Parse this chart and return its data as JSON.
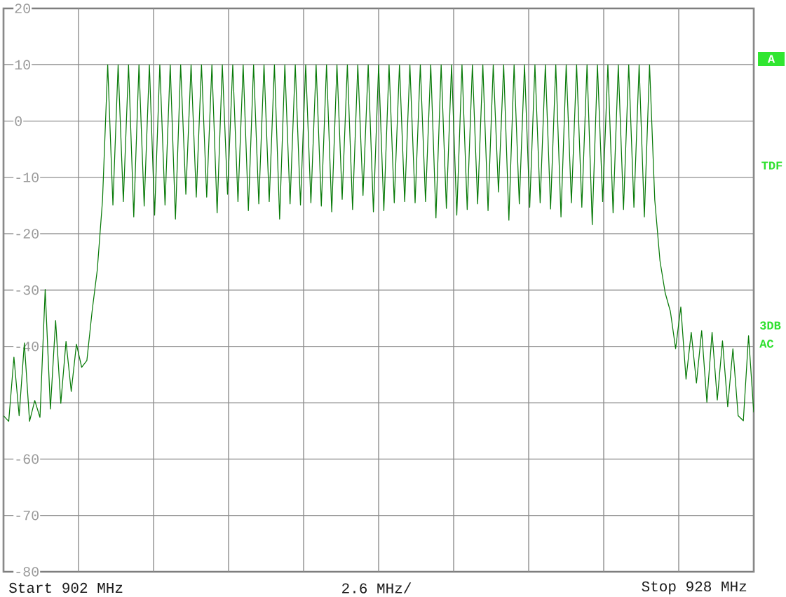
{
  "chart_data": {
    "type": "line",
    "xlabel": "2.6 MHz/",
    "annotations": [
      "Start 902 MHz",
      "Stop 928 MHz",
      "A",
      "TDF",
      "3DB",
      "AC"
    ],
    "categories": [
      null,
      null,
      null,
      null,
      null,
      null,
      null,
      null,
      null,
      null,
      null,
      null,
      null,
      null,
      null,
      null,
      null,
      null,
      null,
      null,
      null,
      null,
      null,
      null,
      null,
      null,
      null,
      null,
      null,
      null,
      null,
      null,
      null,
      null,
      null,
      null,
      null,
      null,
      null,
      null,
      null,
      null,
      null,
      null,
      null,
      null,
      null,
      null,
      null,
      null,
      null,
      null,
      null,
      null,
      null,
      null,
      null,
      null,
      null,
      null,
      null,
      null,
      null,
      null,
      null,
      null,
      null,
      null,
      null,
      null,
      null,
      null,
      null,
      null,
      null,
      null,
      null,
      null,
      null,
      null,
      null,
      null,
      null,
      null,
      null,
      null,
      null,
      null,
      null,
      null,
      null,
      null,
      null,
      null,
      null,
      null,
      null,
      null,
      null,
      null,
      null,
      null,
      null,
      null,
      null,
      null,
      null,
      null,
      null,
      null,
      null,
      null,
      null,
      null,
      null,
      null,
      null,
      null,
      null,
      null,
      null,
      null,
      null,
      null,
      null,
      null,
      null,
      null,
      null,
      null,
      null,
      null,
      null,
      null,
      null,
      null,
      null,
      null,
      null,
      null,
      null,
      null,
      null,
      null,
      null
    ],
    "ylim": [
      -80,
      20
    ],
    "yticks": [
      -80,
      -70,
      -60,
      {
        "value": -50,
        "label": null
      },
      -40,
      -30,
      -20,
      -10,
      0,
      10,
      20
    ],
    "grid": true,
    "line_style": "solid",
    "series": [
      {
        "color": "#087a08",
        "values": [
          -52.3,
          -53.3,
          -41.9,
          -52.3,
          -39.4,
          -53.3,
          -49.6,
          -52.6,
          -29.9,
          -51.1,
          -35.4,
          -50.1,
          -39.1,
          -48.0,
          -39.6,
          -43.7,
          -42.5,
          -33.8,
          -26.4,
          -14.1,
          10,
          -14.9,
          10,
          -14.3,
          10,
          -17.0,
          10,
          -15.1,
          10,
          -16.7,
          10,
          -14.9,
          10,
          -17.4,
          10,
          -13.0,
          10,
          -13.5,
          10,
          -13.5,
          10,
          -16.3,
          10,
          -13.0,
          10,
          -14.3,
          10,
          -15.9,
          10,
          -14.7,
          10,
          -14.3,
          10,
          -17.4,
          10,
          -14.7,
          10,
          -14.9,
          10,
          -14.5,
          10,
          -15.1,
          10,
          -16.1,
          10,
          -13.9,
          10,
          -15.7,
          10,
          -13.2,
          10,
          -16.1,
          10,
          -15.9,
          10,
          -14.5,
          10,
          -14.3,
          10,
          -14.5,
          10,
          -14.3,
          10,
          -17.2,
          10,
          -15.5,
          10,
          -16.7,
          10,
          -15.7,
          10,
          -14.7,
          10,
          -15.9,
          10,
          -12.6,
          10,
          -17.6,
          10,
          -14.7,
          10,
          -15.3,
          10,
          -14.5,
          10,
          -15.6,
          10,
          -17.0,
          10,
          -14.5,
          10,
          -15.3,
          10,
          -18.4,
          10,
          -14.3,
          10,
          -16.3,
          10,
          -15.7,
          10,
          -15.3,
          10,
          -17.0,
          10,
          -14.0,
          -24.8,
          -30.5,
          -33.8,
          -40.4,
          -33.0,
          -45.8,
          -37.5,
          -46.5,
          -37.2,
          -49.9,
          -37.5,
          -49.5,
          -39.0,
          -50.7,
          -40.4,
          -52.3,
          -53.2,
          -38.1,
          -51.7
        ]
      }
    ]
  }
}
